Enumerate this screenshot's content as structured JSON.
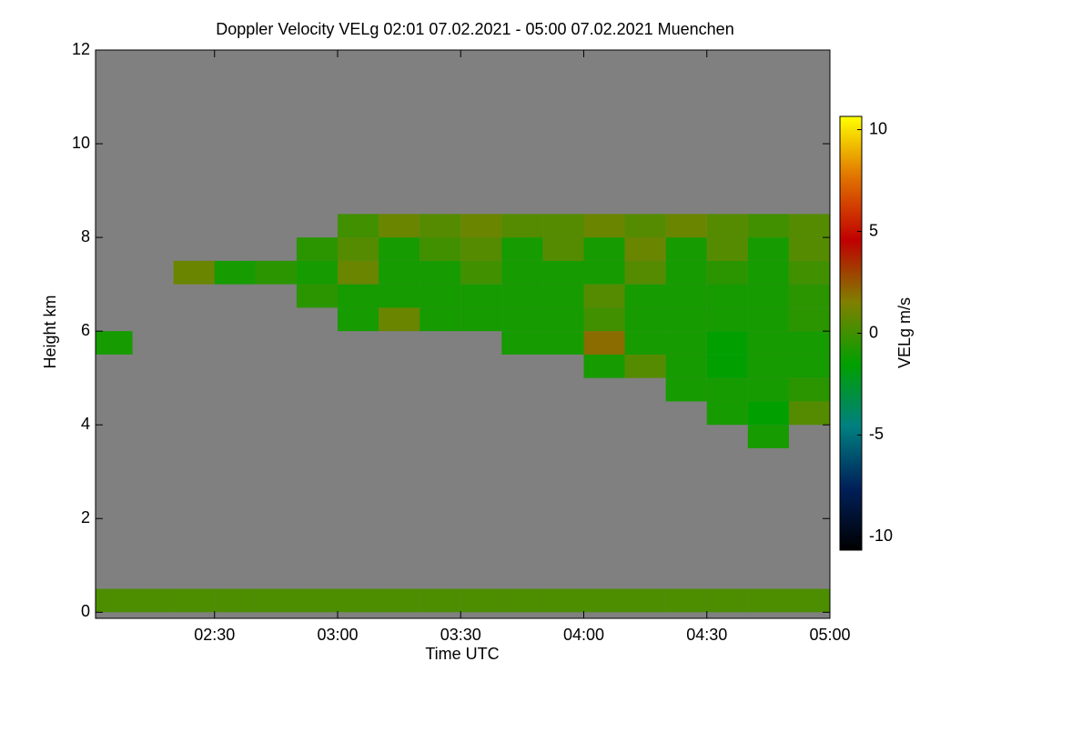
{
  "chart_data": {
    "type": "heatmap",
    "title": "Doppler Velocity VELg   02:01 07.02.2021 - 05:00 07.02.2021 Muenchen",
    "xlabel": "Time UTC",
    "ylabel": "Height km",
    "colorbar_label": "VELg m/s",
    "xlim": [
      "02:01",
      "05:00"
    ],
    "xticks": [
      "02:30",
      "03:00",
      "03:30",
      "04:00",
      "04:30",
      "05:00"
    ],
    "ylim": [
      -0.13,
      12
    ],
    "yticks": [
      0,
      2,
      4,
      6,
      8,
      10,
      12
    ],
    "clim": [
      -10.65,
      10.65
    ],
    "cticks": [
      -10,
      -5,
      0,
      5,
      10
    ],
    "background": "#808080",
    "colormap": [
      "#000000",
      "#00205a",
      "#008080",
      "#00a000",
      "#808000",
      "#c00000",
      "#e07000",
      "#ffff00"
    ],
    "xbins": [
      "02:00",
      "02:10",
      "02:20",
      "02:30",
      "02:40",
      "02:50",
      "03:00",
      "03:10",
      "03:20",
      "03:30",
      "03:40",
      "03:50",
      "04:00",
      "04:10",
      "04:20",
      "04:30",
      "04:40",
      "04:50",
      "05:00"
    ],
    "ybins": [
      0,
      0.5,
      1,
      1.5,
      2,
      2.5,
      3,
      3.5,
      4,
      4.5,
      5,
      5.5,
      6,
      6.5,
      7,
      7.5,
      8,
      8.5,
      9
    ],
    "z": [
      [
        0.3,
        0.3,
        0.3,
        0.3,
        0.3,
        0.3,
        0.3,
        0.3,
        0.3,
        0.3,
        0.3,
        0.3,
        0.3,
        0.3,
        0.3,
        0.3,
        0.3,
        0.3
      ],
      [
        null,
        null,
        null,
        null,
        null,
        null,
        null,
        null,
        null,
        null,
        null,
        null,
        null,
        null,
        null,
        null,
        null,
        null
      ],
      [
        null,
        null,
        null,
        null,
        null,
        null,
        null,
        null,
        null,
        null,
        null,
        null,
        null,
        null,
        null,
        null,
        null,
        null
      ],
      [
        null,
        null,
        null,
        null,
        null,
        null,
        null,
        null,
        null,
        null,
        null,
        null,
        null,
        null,
        null,
        null,
        null,
        null
      ],
      [
        null,
        null,
        null,
        null,
        null,
        null,
        null,
        null,
        null,
        null,
        null,
        null,
        null,
        null,
        null,
        null,
        null,
        null
      ],
      [
        null,
        null,
        null,
        null,
        null,
        null,
        null,
        null,
        null,
        null,
        null,
        null,
        null,
        null,
        null,
        null,
        null,
        null
      ],
      [
        null,
        null,
        null,
        null,
        null,
        null,
        null,
        null,
        null,
        null,
        null,
        null,
        null,
        null,
        null,
        null,
        null,
        null
      ],
      [
        null,
        null,
        null,
        null,
        null,
        null,
        null,
        null,
        null,
        null,
        null,
        null,
        null,
        null,
        null,
        null,
        -1,
        null
      ],
      [
        null,
        null,
        null,
        null,
        null,
        null,
        null,
        null,
        null,
        null,
        null,
        null,
        null,
        null,
        null,
        -1,
        -1.5,
        0.5
      ],
      [
        null,
        null,
        null,
        null,
        null,
        null,
        null,
        null,
        null,
        null,
        null,
        null,
        null,
        null,
        -1,
        -1,
        -1,
        -0.5
      ],
      [
        null,
        null,
        null,
        null,
        null,
        null,
        null,
        null,
        null,
        null,
        null,
        null,
        -1,
        0.5,
        -1,
        -1.5,
        -1,
        -1
      ],
      [
        -1,
        null,
        null,
        null,
        null,
        null,
        null,
        null,
        null,
        null,
        -1,
        -1,
        2,
        -1,
        -1,
        -1.5,
        -1,
        -1
      ],
      [
        null,
        null,
        null,
        null,
        null,
        null,
        -1,
        1,
        -1,
        -1,
        -1,
        -1,
        0,
        -1,
        -1,
        -1,
        -1,
        -0.5
      ],
      [
        null,
        null,
        null,
        null,
        null,
        -0.5,
        -1,
        -1,
        -1,
        -1,
        -1,
        -1,
        0.5,
        -1,
        -1,
        -1,
        -1,
        -0.5
      ],
      [
        null,
        null,
        1,
        -1,
        -0.5,
        -1,
        1,
        -1,
        -1,
        0,
        -1,
        -1,
        -1,
        0.5,
        -1,
        -0.5,
        -1,
        0
      ],
      [
        null,
        null,
        null,
        null,
        null,
        -0.5,
        0.5,
        -1,
        0,
        0.5,
        -1,
        0.5,
        -1,
        1,
        -1,
        0.5,
        -1,
        0.5
      ],
      [
        null,
        null,
        null,
        null,
        null,
        null,
        0,
        1,
        0.5,
        1,
        0.5,
        0.5,
        1,
        0.5,
        1,
        0.5,
        0,
        0.5
      ],
      [
        null,
        null,
        null,
        null,
        null,
        null,
        null,
        null,
        null,
        null,
        null,
        null,
        null,
        null,
        null,
        null,
        null,
        null
      ]
    ]
  }
}
